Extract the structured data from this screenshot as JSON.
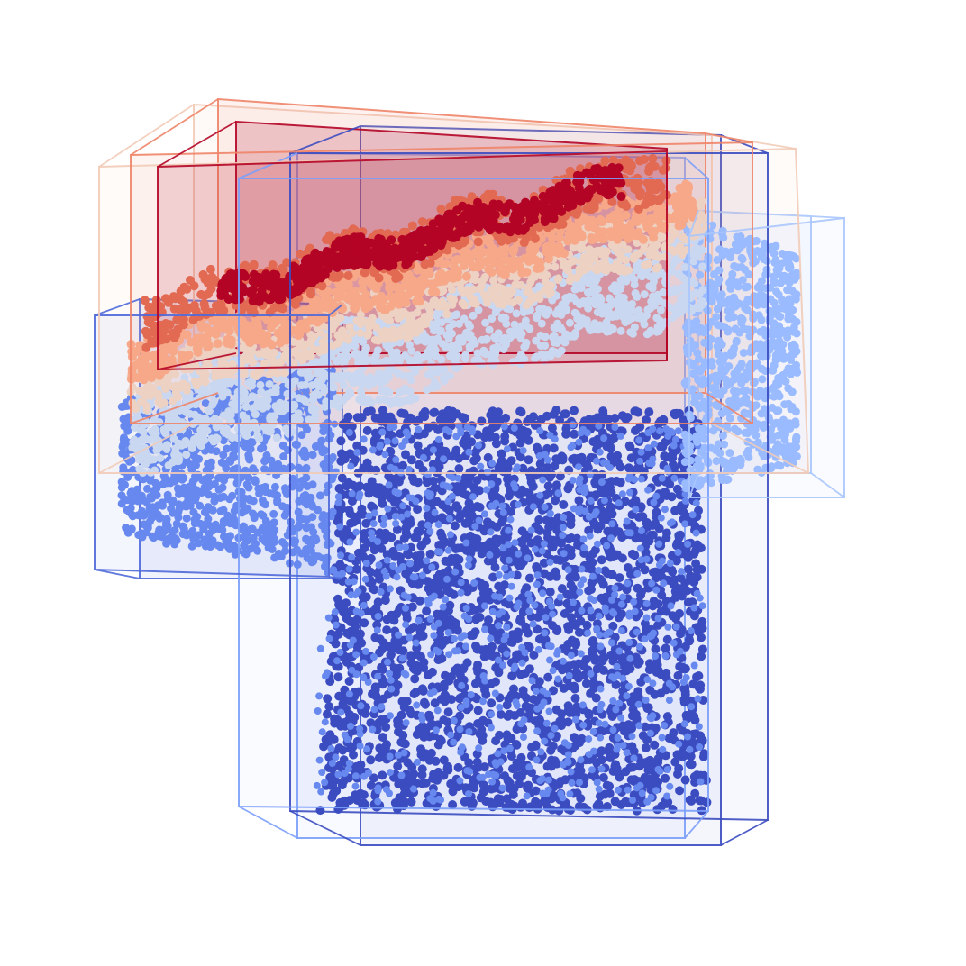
{
  "figure": {
    "background": "#ffffff",
    "colormap": "coolwarm",
    "palette": {
      "blue_dark": "#3b4cc0",
      "blue_mid": "#6788ee",
      "blue_light": "#9abbff",
      "grey_blue": "#c9d7f0",
      "cream": "#edd1c2",
      "salmon_light": "#f7a889",
      "salmon": "#e26952",
      "red_dark": "#b40426"
    },
    "layers": [
      {
        "name": "shirt-body",
        "color": "#3b4cc0"
      },
      {
        "name": "left-sleeve",
        "color": "#6788ee"
      },
      {
        "name": "right-sleeve",
        "color": "#9abbff"
      },
      {
        "name": "collar-band-grey",
        "color": "#c9d7f0"
      },
      {
        "name": "collar-band-cream",
        "color": "#edd1c2"
      },
      {
        "name": "collar-band-salmon",
        "color": "#f7a889"
      },
      {
        "name": "collar-band-orange",
        "color": "#e26952"
      },
      {
        "name": "collar-band-red",
        "color": "#b40426"
      }
    ],
    "bounding_boxes": [
      {
        "name": "body-box-outer",
        "color": "#3b4cc0"
      },
      {
        "name": "body-box-inner",
        "color": "#7b9ff9"
      },
      {
        "name": "left-sleeve-box",
        "color": "#4f69d9"
      },
      {
        "name": "right-sleeve-box",
        "color": "#aac7fd"
      },
      {
        "name": "upper-box-cream",
        "color": "#f2cbb7"
      },
      {
        "name": "upper-box-salmon",
        "color": "#ee8468"
      },
      {
        "name": "collar-box-red",
        "color": "#b40426"
      }
    ]
  }
}
